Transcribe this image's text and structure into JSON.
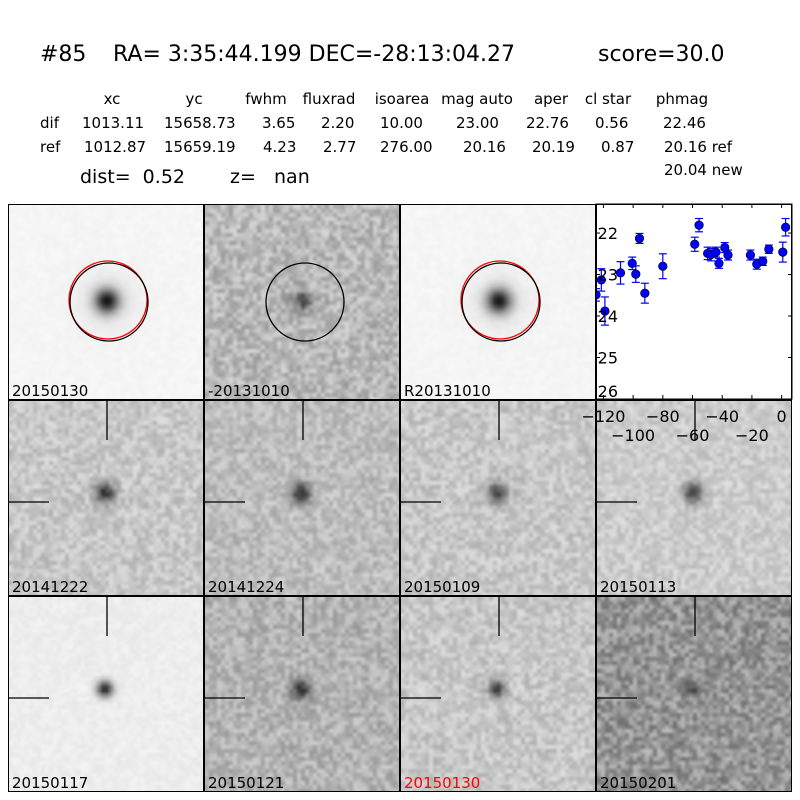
{
  "header": {
    "id": "#85",
    "coords": "RA= 3:35:44.199 DEC=-28:13:04.27",
    "score": "score=30.0"
  },
  "table": {
    "columns": [
      "xc",
      "yc",
      "fwhm",
      "fluxrad",
      "isoarea",
      "mag auto",
      "aper",
      "cl star",
      "phmag"
    ],
    "rows": [
      {
        "label": "dif",
        "values": [
          "1013.11",
          "15658.73",
          "3.65",
          "2.20",
          "10.00",
          "23.00",
          "22.76",
          "0.56",
          "22.46"
        ]
      },
      {
        "label": "ref",
        "values": [
          "1012.87",
          "15659.19",
          "4.23",
          "2.77",
          "276.00",
          "20.16",
          "20.19",
          "0.87",
          "20.16 ref"
        ]
      }
    ],
    "extra": "20.04 new",
    "dist": "dist=  0.52",
    "z": "z=   nan"
  },
  "cutouts": [
    {
      "label": "20150130",
      "label_color": "#000000",
      "bg": 246,
      "noise": 4,
      "star": 0.85,
      "size": 6,
      "circles": [
        "#ff0000",
        "#000000"
      ]
    },
    {
      "label": "-20131010",
      "label_color": "#000000",
      "bg": 185,
      "noise": 40,
      "star": 0.6,
      "size": 4,
      "circles": [
        "#000000"
      ]
    },
    {
      "label": "R20131010",
      "label_color": "#000000",
      "bg": 246,
      "noise": 4,
      "star": 0.85,
      "size": 6,
      "circles": [
        "#ff0000",
        "#000000"
      ]
    },
    {
      "label": "20141222",
      "label_color": "#000000",
      "bg": 200,
      "noise": 30,
      "star": 0.75,
      "size": 5,
      "crosshair": true
    },
    {
      "label": "20141224",
      "label_color": "#000000",
      "bg": 190,
      "noise": 32,
      "star": 0.75,
      "size": 5,
      "crosshair": true
    },
    {
      "label": "20150109",
      "label_color": "#000000",
      "bg": 200,
      "noise": 30,
      "star": 0.65,
      "size": 5,
      "crosshair": true
    },
    {
      "label": "20150113",
      "label_color": "#000000",
      "bg": 205,
      "noise": 26,
      "star": 0.7,
      "size": 5,
      "crosshair": true
    },
    {
      "label": "20150117",
      "label_color": "#000000",
      "bg": 238,
      "noise": 8,
      "star": 0.85,
      "size": 4,
      "crosshair": true
    },
    {
      "label": "20150121",
      "label_color": "#000000",
      "bg": 180,
      "noise": 36,
      "star": 0.7,
      "size": 5,
      "crosshair": true
    },
    {
      "label": "20150130",
      "label_color": "#ff0000",
      "bg": 200,
      "noise": 30,
      "star": 0.7,
      "size": 4,
      "crosshair": true
    },
    {
      "label": "20150201",
      "label_color": "#000000",
      "bg": 150,
      "noise": 50,
      "star": 0.45,
      "size": 4,
      "crosshair": true
    }
  ],
  "chart_data": {
    "type": "scatter",
    "marker_color": "#0000ff",
    "xlim": [
      -125,
      7
    ],
    "ylim": [
      26,
      21.3
    ],
    "y_inverted": true,
    "xticks": [
      -120,
      -100,
      -80,
      -60,
      -40,
      -20,
      0
    ],
    "xtick_labels": [
      "−120",
      "−100",
      "−80",
      "−60",
      "−40",
      "−20",
      "0"
    ],
    "yticks": [
      22,
      23,
      24,
      25,
      26
    ],
    "ytick_labels": [
      "22",
      "23",
      "24",
      "25",
      "26"
    ],
    "points": [
      {
        "x": -125,
        "y": 23.49,
        "err": 0.15
      },
      {
        "x": -121.4,
        "y": 23.13,
        "err": 0.27
      },
      {
        "x": -119,
        "y": 23.88,
        "err": 0.34
      },
      {
        "x": -108.5,
        "y": 22.96,
        "err": 0.27
      },
      {
        "x": -100.6,
        "y": 22.73,
        "err": 0.15
      },
      {
        "x": -98.2,
        "y": 22.99,
        "err": 0.2
      },
      {
        "x": -95.7,
        "y": 22.13,
        "err": 0.12
      },
      {
        "x": -92.1,
        "y": 23.45,
        "err": 0.24
      },
      {
        "x": -80,
        "y": 22.8,
        "err": 0.3
      },
      {
        "x": -58.5,
        "y": 22.27,
        "err": 0.17
      },
      {
        "x": -55.6,
        "y": 21.81,
        "err": 0.16
      },
      {
        "x": -49.8,
        "y": 22.49,
        "err": 0.15
      },
      {
        "x": -47.5,
        "y": 22.52,
        "err": 0.15
      },
      {
        "x": -44.2,
        "y": 22.46,
        "err": 0.12
      },
      {
        "x": -42.2,
        "y": 22.73,
        "err": 0.12
      },
      {
        "x": -38.3,
        "y": 22.35,
        "err": 0.12
      },
      {
        "x": -36.1,
        "y": 22.53,
        "err": 0.12
      },
      {
        "x": -21,
        "y": 22.53,
        "err": 0.12
      },
      {
        "x": -16.7,
        "y": 22.75,
        "err": 0.12
      },
      {
        "x": -12.7,
        "y": 22.68,
        "err": 0.1
      },
      {
        "x": -8.6,
        "y": 22.39,
        "err": 0.1
      },
      {
        "x": 0.8,
        "y": 22.46,
        "err": 0.24
      },
      {
        "x": 2.7,
        "y": 21.86,
        "err": 0.21
      }
    ]
  }
}
